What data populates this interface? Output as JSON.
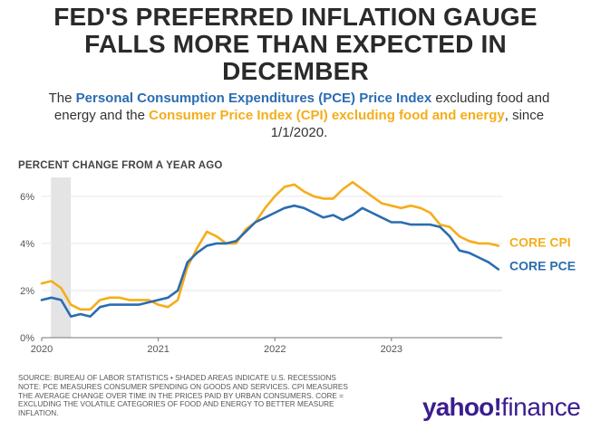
{
  "headline": {
    "title_line1": "FED'S PREFERRED INFLATION GAUGE",
    "title_line2": "FALLS MORE THAN EXPECTED IN",
    "title_line3": "DECEMBER",
    "sub_prefix": "The ",
    "sub_pce": "Personal Consumption Expenditures (PCE) Price Index",
    "sub_mid": " excluding food and energy and the ",
    "sub_cpi": "Consumer Price Index (CPI) excluding food and energy",
    "sub_suffix": ", since 1/1/2020."
  },
  "colors": {
    "cpi": "#f5ad1a",
    "pce": "#2b6cb0",
    "recession": "#e4e4e4",
    "grid": "#e6e6e6",
    "axis": "#777777"
  },
  "source": {
    "line1": "SOURCE: BUREAU OF LABOR STATISTICS • SHADED AREAS INDICATE U.S. RECESSIONS",
    "line2": "NOTE: PCE MEASURES CONSUMER SPENDING ON GOODS AND SERVICES. CPI MEASURES",
    "line3": "THE AVERAGE CHANGE OVER TIME IN THE PRICES PAID BY URBAN CONSUMERS. CORE =",
    "line4": "EXCLUDING THE VOLATILE CATEGORIES OF FOOD AND ENERGY TO BETTER MEASURE",
    "line5": "INFLATION."
  },
  "logo": {
    "brand": "yahoo!",
    "product": "finance"
  },
  "chart_data": {
    "type": "line",
    "title": "PERCENT CHANGE FROM A YEAR AGO",
    "xlabel": "",
    "ylabel": "PERCENT CHANGE FROM A YEAR AGO",
    "xlim": [
      2020.0,
      2023.95
    ],
    "ylim": [
      0,
      6.8
    ],
    "yticks": [
      0,
      2,
      4,
      6
    ],
    "ytick_labels": [
      "0%",
      "2%",
      "4%",
      "6%"
    ],
    "xticks": [
      2020,
      2021,
      2022,
      2023
    ],
    "xtick_labels": [
      "2020",
      "2021",
      "2022",
      "2023"
    ],
    "recession_band": [
      2020.08,
      2020.25
    ],
    "x": [
      2020.0,
      2020.083,
      2020.167,
      2020.25,
      2020.333,
      2020.417,
      2020.5,
      2020.583,
      2020.667,
      2020.75,
      2020.833,
      2020.917,
      2021.0,
      2021.083,
      2021.167,
      2021.25,
      2021.333,
      2021.417,
      2021.5,
      2021.583,
      2021.667,
      2021.75,
      2021.833,
      2021.917,
      2022.0,
      2022.083,
      2022.167,
      2022.25,
      2022.333,
      2022.417,
      2022.5,
      2022.583,
      2022.667,
      2022.75,
      2022.833,
      2022.917,
      2023.0,
      2023.083,
      2023.167,
      2023.25,
      2023.333,
      2023.417,
      2023.5,
      2023.583,
      2023.667,
      2023.75,
      2023.833,
      2023.917
    ],
    "series": [
      {
        "name": "CORE CPI",
        "values": [
          2.3,
          2.4,
          2.1,
          1.4,
          1.2,
          1.2,
          1.6,
          1.7,
          1.7,
          1.6,
          1.6,
          1.6,
          1.4,
          1.3,
          1.6,
          3.0,
          3.8,
          4.5,
          4.3,
          4.0,
          4.0,
          4.6,
          4.9,
          5.5,
          6.0,
          6.4,
          6.5,
          6.2,
          6.0,
          5.9,
          5.9,
          6.3,
          6.6,
          6.3,
          6.0,
          5.7,
          5.6,
          5.5,
          5.6,
          5.5,
          5.3,
          4.8,
          4.7,
          4.3,
          4.1,
          4.0,
          4.0,
          3.9
        ]
      },
      {
        "name": "CORE PCE",
        "values": [
          1.6,
          1.7,
          1.6,
          0.9,
          1.0,
          0.9,
          1.3,
          1.4,
          1.4,
          1.4,
          1.4,
          1.5,
          1.6,
          1.7,
          2.0,
          3.2,
          3.6,
          3.9,
          4.0,
          4.0,
          4.1,
          4.5,
          4.9,
          5.1,
          5.3,
          5.5,
          5.6,
          5.5,
          5.3,
          5.1,
          5.2,
          5.0,
          5.2,
          5.5,
          5.3,
          5.1,
          4.9,
          4.9,
          4.8,
          4.8,
          4.8,
          4.7,
          4.3,
          3.7,
          3.6,
          3.4,
          3.2,
          2.9
        ]
      }
    ]
  }
}
